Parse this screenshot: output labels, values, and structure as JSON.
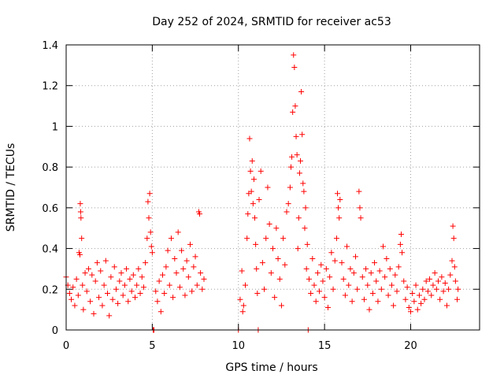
{
  "chart_data": {
    "type": "scatter",
    "title": "Day 252 of 2024, SRMTID for receiver ac53",
    "xlabel": "GPS time / hours",
    "ylabel": "SRMTID / TECUs",
    "xlim": [
      0,
      24
    ],
    "ylim": [
      0,
      1.4
    ],
    "xticks": [
      0,
      5,
      10,
      15,
      20
    ],
    "xtick_labels": [
      "0",
      "5",
      "10",
      "15",
      "20"
    ],
    "yticks": [
      0,
      0.2,
      0.4,
      0.6,
      0.8,
      1.0,
      1.2,
      1.4
    ],
    "ytick_labels": [
      "0",
      "0.2",
      "0.4",
      "0.6",
      "0.8",
      "1",
      "1.2",
      "1.4"
    ],
    "grid": true,
    "marker": "+",
    "marker_color": "#ff0000",
    "points": [
      [
        0.0,
        0.26
      ],
      [
        0.1,
        0.22
      ],
      [
        0.2,
        0.18
      ],
      [
        0.3,
        0.15
      ],
      [
        0.4,
        0.21
      ],
      [
        0.5,
        0.12
      ],
      [
        0.6,
        0.25
      ],
      [
        0.7,
        0.17
      ],
      [
        0.75,
        0.38
      ],
      [
        0.8,
        0.37
      ],
      [
        0.82,
        0.62
      ],
      [
        0.84,
        0.58
      ],
      [
        0.86,
        0.55
      ],
      [
        0.9,
        0.45
      ],
      [
        0.95,
        0.22
      ],
      [
        1.0,
        0.1
      ],
      [
        1.1,
        0.28
      ],
      [
        1.2,
        0.19
      ],
      [
        1.3,
        0.3
      ],
      [
        1.4,
        0.14
      ],
      [
        1.5,
        0.27
      ],
      [
        1.6,
        0.08
      ],
      [
        1.7,
        0.24
      ],
      [
        1.8,
        0.33
      ],
      [
        1.9,
        0.16
      ],
      [
        2.0,
        0.29
      ],
      [
        2.1,
        0.12
      ],
      [
        2.2,
        0.22
      ],
      [
        2.3,
        0.34
      ],
      [
        2.4,
        0.18
      ],
      [
        2.5,
        0.07
      ],
      [
        2.6,
        0.26
      ],
      [
        2.7,
        0.15
      ],
      [
        2.8,
        0.31
      ],
      [
        2.9,
        0.2
      ],
      [
        3.0,
        0.13
      ],
      [
        3.1,
        0.24
      ],
      [
        3.2,
        0.28
      ],
      [
        3.3,
        0.17
      ],
      [
        3.4,
        0.22
      ],
      [
        3.5,
        0.3
      ],
      [
        3.6,
        0.14
      ],
      [
        3.7,
        0.25
      ],
      [
        3.8,
        0.19
      ],
      [
        3.9,
        0.27
      ],
      [
        4.0,
        0.16
      ],
      [
        4.1,
        0.22
      ],
      [
        4.2,
        0.3
      ],
      [
        4.3,
        0.18
      ],
      [
        4.4,
        0.26
      ],
      [
        4.5,
        0.21
      ],
      [
        4.6,
        0.33
      ],
      [
        4.7,
        0.45
      ],
      [
        4.75,
        0.63
      ],
      [
        4.8,
        0.55
      ],
      [
        4.85,
        0.67
      ],
      [
        4.9,
        0.48
      ],
      [
        4.95,
        0.41
      ],
      [
        5.0,
        0.38
      ],
      [
        5.05,
        0.0
      ],
      [
        5.1,
        0.0
      ],
      [
        5.2,
        0.19
      ],
      [
        5.3,
        0.14
      ],
      [
        5.4,
        0.24
      ],
      [
        5.5,
        0.09
      ],
      [
        5.6,
        0.27
      ],
      [
        5.7,
        0.18
      ],
      [
        5.8,
        0.31
      ],
      [
        5.9,
        0.39
      ],
      [
        6.0,
        0.22
      ],
      [
        6.1,
        0.45
      ],
      [
        6.2,
        0.16
      ],
      [
        6.3,
        0.35
      ],
      [
        6.4,
        0.28
      ],
      [
        6.5,
        0.48
      ],
      [
        6.6,
        0.21
      ],
      [
        6.7,
        0.39
      ],
      [
        6.8,
        0.3
      ],
      [
        6.9,
        0.17
      ],
      [
        7.0,
        0.34
      ],
      [
        7.1,
        0.26
      ],
      [
        7.2,
        0.42
      ],
      [
        7.3,
        0.19
      ],
      [
        7.4,
        0.31
      ],
      [
        7.5,
        0.36
      ],
      [
        7.6,
        0.22
      ],
      [
        7.7,
        0.58
      ],
      [
        7.75,
        0.57
      ],
      [
        7.8,
        0.28
      ],
      [
        7.9,
        0.2
      ],
      [
        8.0,
        0.25
      ],
      [
        10.0,
        0.0
      ],
      [
        10.1,
        0.15
      ],
      [
        10.2,
        0.29
      ],
      [
        10.25,
        0.09
      ],
      [
        10.3,
        0.12
      ],
      [
        10.4,
        0.22
      ],
      [
        10.5,
        0.45
      ],
      [
        10.55,
        0.57
      ],
      [
        10.6,
        0.67
      ],
      [
        10.65,
        0.94
      ],
      [
        10.7,
        0.78
      ],
      [
        10.75,
        0.68
      ],
      [
        10.8,
        0.83
      ],
      [
        10.85,
        0.62
      ],
      [
        10.9,
        0.74
      ],
      [
        10.95,
        0.55
      ],
      [
        11.0,
        0.42
      ],
      [
        11.05,
        0.3
      ],
      [
        11.1,
        0.18
      ],
      [
        11.15,
        0.0
      ],
      [
        11.2,
        0.64
      ],
      [
        11.3,
        0.78
      ],
      [
        11.4,
        0.33
      ],
      [
        11.5,
        0.2
      ],
      [
        11.6,
        0.45
      ],
      [
        11.7,
        0.7
      ],
      [
        11.8,
        0.52
      ],
      [
        11.9,
        0.28
      ],
      [
        12.0,
        0.4
      ],
      [
        12.1,
        0.16
      ],
      [
        12.2,
        0.5
      ],
      [
        12.3,
        0.35
      ],
      [
        12.4,
        0.25
      ],
      [
        12.5,
        0.12
      ],
      [
        12.6,
        0.45
      ],
      [
        12.7,
        0.32
      ],
      [
        12.8,
        0.58
      ],
      [
        12.9,
        0.62
      ],
      [
        13.0,
        0.7
      ],
      [
        13.05,
        0.8
      ],
      [
        13.1,
        0.85
      ],
      [
        13.15,
        1.07
      ],
      [
        13.2,
        1.35
      ],
      [
        13.25,
        1.29
      ],
      [
        13.3,
        1.1
      ],
      [
        13.35,
        0.95
      ],
      [
        13.4,
        0.86
      ],
      [
        13.45,
        0.4
      ],
      [
        13.5,
        0.55
      ],
      [
        13.55,
        0.77
      ],
      [
        13.6,
        0.83
      ],
      [
        13.65,
        1.17
      ],
      [
        13.7,
        0.96
      ],
      [
        13.75,
        0.72
      ],
      [
        13.8,
        0.68
      ],
      [
        13.85,
        0.5
      ],
      [
        13.9,
        0.6
      ],
      [
        13.95,
        0.3
      ],
      [
        14.0,
        0.42
      ],
      [
        14.05,
        0.0
      ],
      [
        14.1,
        0.25
      ],
      [
        14.2,
        0.18
      ],
      [
        14.3,
        0.35
      ],
      [
        14.4,
        0.22
      ],
      [
        14.5,
        0.14
      ],
      [
        14.6,
        0.28
      ],
      [
        14.7,
        0.19
      ],
      [
        14.8,
        0.32
      ],
      [
        14.9,
        0.24
      ],
      [
        15.0,
        0.16
      ],
      [
        15.1,
        0.3
      ],
      [
        15.2,
        0.11
      ],
      [
        15.3,
        0.26
      ],
      [
        15.4,
        0.38
      ],
      [
        15.5,
        0.2
      ],
      [
        15.6,
        0.34
      ],
      [
        15.7,
        0.45
      ],
      [
        15.75,
        0.67
      ],
      [
        15.8,
        0.6
      ],
      [
        15.85,
        0.55
      ],
      [
        15.9,
        0.64
      ],
      [
        16.0,
        0.33
      ],
      [
        16.1,
        0.25
      ],
      [
        16.2,
        0.17
      ],
      [
        16.3,
        0.41
      ],
      [
        16.4,
        0.22
      ],
      [
        16.5,
        0.3
      ],
      [
        16.6,
        0.14
      ],
      [
        16.7,
        0.28
      ],
      [
        16.8,
        0.36
      ],
      [
        16.9,
        0.2
      ],
      [
        17.0,
        0.68
      ],
      [
        17.05,
        0.6
      ],
      [
        17.1,
        0.55
      ],
      [
        17.2,
        0.26
      ],
      [
        17.3,
        0.15
      ],
      [
        17.4,
        0.3
      ],
      [
        17.5,
        0.22
      ],
      [
        17.6,
        0.1
      ],
      [
        17.7,
        0.28
      ],
      [
        17.8,
        0.18
      ],
      [
        17.9,
        0.33
      ],
      [
        18.0,
        0.24
      ],
      [
        18.1,
        0.14
      ],
      [
        18.2,
        0.29
      ],
      [
        18.3,
        0.2
      ],
      [
        18.4,
        0.41
      ],
      [
        18.5,
        0.26
      ],
      [
        18.6,
        0.35
      ],
      [
        18.7,
        0.17
      ],
      [
        18.8,
        0.3
      ],
      [
        18.9,
        0.22
      ],
      [
        19.0,
        0.12
      ],
      [
        19.1,
        0.27
      ],
      [
        19.2,
        0.19
      ],
      [
        19.3,
        0.31
      ],
      [
        19.4,
        0.42
      ],
      [
        19.45,
        0.47
      ],
      [
        19.5,
        0.38
      ],
      [
        19.6,
        0.24
      ],
      [
        19.7,
        0.15
      ],
      [
        19.8,
        0.21
      ],
      [
        19.9,
        0.11
      ],
      [
        20.0,
        0.09
      ],
      [
        20.1,
        0.18
      ],
      [
        20.2,
        0.14
      ],
      [
        20.3,
        0.22
      ],
      [
        20.4,
        0.1
      ],
      [
        20.5,
        0.17
      ],
      [
        20.6,
        0.13
      ],
      [
        20.7,
        0.2
      ],
      [
        20.8,
        0.15
      ],
      [
        20.9,
        0.24
      ],
      [
        21.0,
        0.19
      ],
      [
        21.1,
        0.25
      ],
      [
        21.2,
        0.17
      ],
      [
        21.3,
        0.22
      ],
      [
        21.4,
        0.28
      ],
      [
        21.5,
        0.2
      ],
      [
        21.6,
        0.24
      ],
      [
        21.7,
        0.15
      ],
      [
        21.8,
        0.26
      ],
      [
        21.9,
        0.19
      ],
      [
        22.0,
        0.23
      ],
      [
        22.1,
        0.12
      ],
      [
        22.2,
        0.2
      ],
      [
        22.3,
        0.27
      ],
      [
        22.4,
        0.34
      ],
      [
        22.45,
        0.51
      ],
      [
        22.5,
        0.45
      ],
      [
        22.55,
        0.31
      ],
      [
        22.6,
        0.24
      ],
      [
        22.7,
        0.15
      ],
      [
        22.75,
        0.2
      ]
    ]
  }
}
